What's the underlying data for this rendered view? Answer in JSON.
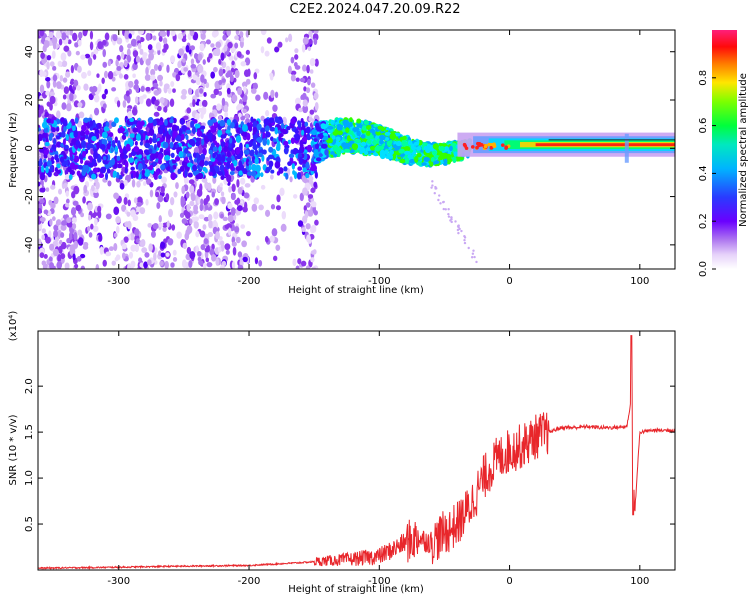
{
  "title": "C2E2.2024.047.20.09.R22",
  "chart_data": [
    {
      "type": "heatmap",
      "xlabel": "Height of straight line (km)",
      "ylabel": "Frequency (Hz)",
      "xlim": [
        -362,
        127
      ],
      "ylim": [
        -50,
        49
      ],
      "xticks": [
        -300,
        -200,
        -100,
        0,
        100
      ],
      "yticks": [
        -40,
        -20,
        0,
        20,
        40
      ],
      "colorbar": {
        "label": "Normalized spectral amplitude",
        "range": [
          0,
          1
        ],
        "ticks": [
          "0.0",
          "0.2",
          "0.4",
          "0.6",
          "0.8"
        ],
        "colors": [
          "#ffffff",
          "#d9b8f5",
          "#8a2be2",
          "#2a00ff",
          "#00c8ff",
          "#00ff66",
          "#b8ff00",
          "#ffaa00",
          "#ff0000",
          "#ff1f7a"
        ]
      },
      "features": {
        "noise_region_x": [
          -362,
          -150
        ],
        "signal_track_x": [
          -150,
          127
        ],
        "spike_x": 90
      }
    },
    {
      "type": "line",
      "xlabel": "Height of straight line (km)",
      "ylabel": "SNR (10 * v/v)",
      "yscale_label": "(x10⁴)",
      "xlim": [
        -362,
        127
      ],
      "ylim": [
        0,
        2.6
      ],
      "xticks": [
        -300,
        -200,
        -100,
        0,
        100
      ],
      "yticks": [
        "0.5",
        "1.0",
        "1.5",
        "2.0"
      ],
      "color": "#e8262b",
      "series": [
        {
          "x": [
            -362,
            -300,
            -260,
            -200,
            -160,
            -140,
            -120,
            -100,
            -90,
            -80,
            -70,
            -60,
            -50,
            -40,
            -30,
            -20,
            -10,
            0,
            10,
            20,
            30,
            40,
            50,
            60,
            70,
            80,
            90,
            94,
            96,
            100,
            110,
            127
          ],
          "values": [
            0.02,
            0.03,
            0.04,
            0.05,
            0.08,
            0.1,
            0.12,
            0.15,
            0.22,
            0.3,
            0.35,
            0.3,
            0.4,
            0.5,
            0.7,
            1.0,
            1.2,
            1.3,
            1.35,
            1.45,
            1.5,
            1.55,
            1.55,
            1.56,
            1.55,
            1.55,
            1.56,
            1.9,
            0.6,
            1.5,
            1.52,
            1.52
          ]
        }
      ]
    }
  ]
}
